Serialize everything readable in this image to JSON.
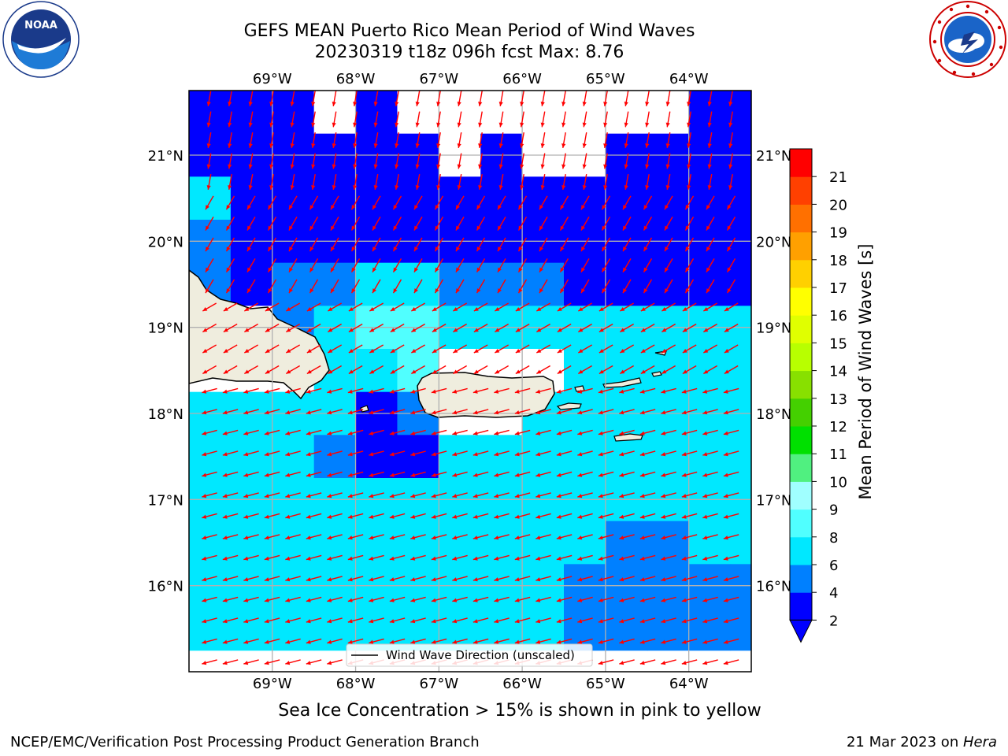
{
  "title": {
    "line1": "GEFS MEAN Puerto Rico Mean Period of Wind Waves",
    "line2": "20230319 t18z 096h fcst   Max: 8.76"
  },
  "map": {
    "lon_range": [
      -70.0,
      -63.25
    ],
    "lat_range": [
      15.0,
      21.75
    ],
    "lon_ticks": [
      {
        "value": -69,
        "label": "69°W"
      },
      {
        "value": -68,
        "label": "68°W"
      },
      {
        "value": -67,
        "label": "67°W"
      },
      {
        "value": -66,
        "label": "66°W"
      },
      {
        "value": -65,
        "label": "65°W"
      },
      {
        "value": -64,
        "label": "64°W"
      }
    ],
    "lat_ticks": [
      {
        "value": 21,
        "label": "21°N"
      },
      {
        "value": 20,
        "label": "20°N"
      },
      {
        "value": 19,
        "label": "19°N"
      },
      {
        "value": 18,
        "label": "18°N"
      },
      {
        "value": 17,
        "label": "17°N"
      },
      {
        "value": 16,
        "label": "16°N"
      }
    ],
    "grid": true,
    "legend": {
      "label": "Wind Wave Direction (unscaled)",
      "placement": "bottom-center"
    },
    "colors": {
      "land": "#efedde",
      "arrow": "#ff0000",
      "coast": "#000000",
      "gridline": "#b0b0b0"
    }
  },
  "colorbar": {
    "label": "Mean Period of Wind Waves [s]",
    "levels": [
      "2",
      "4",
      "6",
      "8",
      "9",
      "10",
      "11",
      "12",
      "13",
      "14",
      "15",
      "16",
      "17",
      "18",
      "19",
      "20",
      "21"
    ],
    "colors": [
      "#0000ff",
      "#0080ff",
      "#00e8ff",
      "#50ffff",
      "#a0ffff",
      "#50f080",
      "#00e000",
      "#44d000",
      "#88e000",
      "#b8ff00",
      "#e0ff00",
      "#ffff00",
      "#ffd000",
      "#ffa000",
      "#ff7000",
      "#ff4000",
      "#ff0000"
    ],
    "extend": "min"
  },
  "chart_data": {
    "type": "heatmap",
    "variable": "Mean Period of Wind Waves",
    "units": "s",
    "max": 8.76,
    "region": "Puerto Rico",
    "model": "GEFS MEAN",
    "cycle": "20230319 t18z",
    "forecast_hour": "096h",
    "contour_levels": [
      2,
      4,
      6,
      8,
      9,
      10,
      11,
      12,
      13,
      14,
      15,
      16,
      17,
      18,
      19,
      20,
      21
    ],
    "rows_lat": [
      21.5,
      21.0,
      20.5,
      20.0,
      19.5,
      19.0,
      18.5,
      18.0,
      17.5,
      17.0,
      16.5,
      16.0,
      15.5
    ],
    "cols_lon": [
      -69.75,
      -69.25,
      -68.75,
      -68.25,
      -67.75,
      -67.25,
      -66.75,
      -66.25,
      -65.75,
      -65.25,
      -64.75,
      -64.25,
      -63.75,
      -63.25
    ],
    "band_grid": [
      [
        1,
        1,
        1,
        0,
        1,
        0,
        0,
        0,
        0,
        0,
        0,
        0,
        1,
        1
      ],
      [
        1,
        1,
        1,
        1,
        1,
        1,
        0,
        1,
        0,
        0,
        1,
        1,
        1,
        1
      ],
      [
        3,
        1,
        1,
        1,
        1,
        1,
        1,
        1,
        1,
        1,
        1,
        1,
        1,
        1
      ],
      [
        2,
        1,
        1,
        1,
        1,
        1,
        1,
        1,
        1,
        1,
        1,
        1,
        1,
        1
      ],
      [
        2,
        1,
        2,
        2,
        3,
        3,
        2,
        2,
        2,
        1,
        1,
        1,
        1,
        1
      ],
      [
        0,
        0,
        2,
        3,
        4,
        4,
        3,
        3,
        3,
        3,
        3,
        3,
        3,
        3
      ],
      [
        0,
        0,
        0,
        3,
        3,
        4,
        0,
        0,
        0,
        3,
        3,
        3,
        3,
        3
      ],
      [
        3,
        3,
        3,
        3,
        1,
        2,
        0,
        0,
        3,
        3,
        3,
        3,
        3,
        3
      ],
      [
        3,
        3,
        3,
        2,
        1,
        1,
        3,
        3,
        3,
        3,
        3,
        3,
        3,
        3
      ],
      [
        3,
        3,
        3,
        3,
        3,
        3,
        3,
        3,
        3,
        3,
        3,
        3,
        3,
        3
      ],
      [
        3,
        3,
        3,
        3,
        3,
        3,
        3,
        3,
        3,
        3,
        2,
        2,
        3,
        3
      ],
      [
        3,
        3,
        3,
        3,
        3,
        3,
        3,
        3,
        3,
        2,
        2,
        2,
        2,
        2
      ],
      [
        3,
        3,
        3,
        3,
        3,
        3,
        3,
        3,
        3,
        2,
        2,
        2,
        2,
        2
      ]
    ],
    "wind_direction": "predominantly from the northeast-east (waves propagating toward the southwest and west)"
  },
  "subcaption": "Sea Ice Concentration > 15% is shown in pink to yellow",
  "footer": {
    "left": "NCEP/EMC/Verification Post Processing Product Generation Branch",
    "right_prefix": "21 Mar 2023 on ",
    "right_host": "Hera"
  }
}
